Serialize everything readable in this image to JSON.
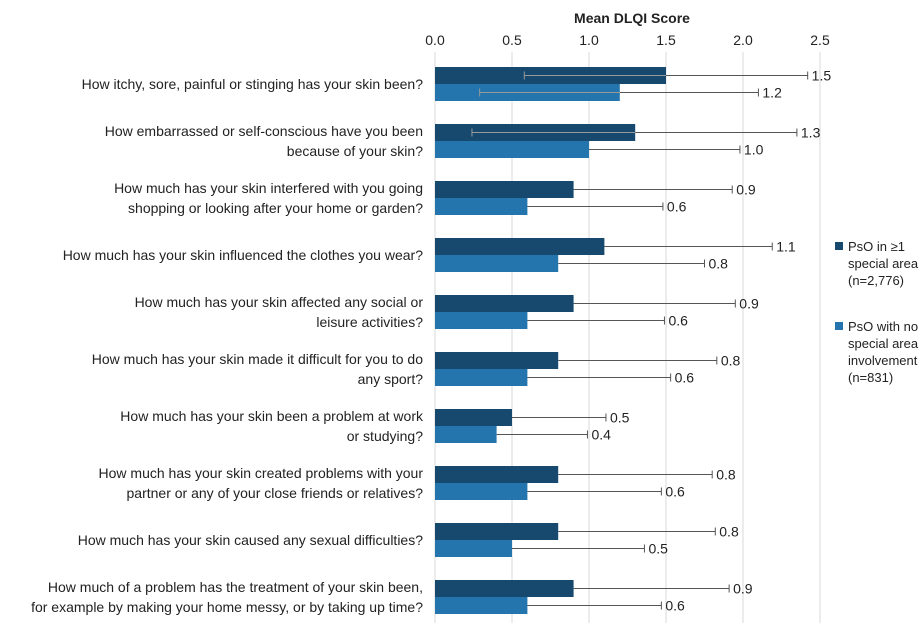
{
  "chart_data": {
    "type": "bar",
    "orientation": "horizontal",
    "title": "Mean DLQI Score",
    "xlim": [
      0,
      2.5
    ],
    "xticks": [
      "0.0",
      "0.5",
      "1.0",
      "1.5",
      "2.0",
      "2.5"
    ],
    "grid": true,
    "legend_position": "right",
    "categories": [
      [
        "How itchy, sore, painful or stinging has your skin been?"
      ],
      [
        "How embarrassed or self-conscious have you been",
        "because of your skin?"
      ],
      [
        "How much has your skin interfered with you going",
        "shopping or looking after your home or garden?"
      ],
      [
        "How much has your skin influenced the clothes you wear?"
      ],
      [
        "How much has your skin affected any social or",
        "leisure activities?"
      ],
      [
        "How much has your skin made it difficult for you to do",
        "any sport?"
      ],
      [
        "How much has your skin been a problem at work",
        "or studying?"
      ],
      [
        "How much has your skin created problems with your",
        "partner or any of your close friends or relatives?"
      ],
      [
        "How much has your skin caused any sexual difficulties?"
      ],
      [
        "How much of a problem has the treatment of your skin been,",
        "for example by making your home messy, or by taking up time?"
      ]
    ],
    "series": [
      {
        "name": [
          "PsO in ≥1",
          "special area",
          "(n=2,776)"
        ],
        "color": "#17496e",
        "values": [
          1.5,
          1.3,
          0.9,
          1.1,
          0.9,
          0.8,
          0.5,
          0.8,
          0.8,
          0.9
        ],
        "labels": [
          "1.5",
          "1.3",
          "0.9",
          "1.1",
          "0.9",
          "0.8",
          "0.5",
          "0.8",
          "0.8",
          "0.9"
        ],
        "error_low": [
          0.58,
          0.24,
          null,
          null,
          null,
          null,
          null,
          null,
          null,
          null
        ],
        "error_high": [
          2.42,
          2.35,
          1.93,
          2.19,
          1.95,
          1.83,
          1.11,
          1.8,
          1.82,
          1.91
        ]
      },
      {
        "name": [
          "PsO with no",
          "special area",
          "involvement",
          "(n=831)"
        ],
        "color": "#2474ad",
        "values": [
          1.2,
          1.0,
          0.6,
          0.8,
          0.6,
          0.6,
          0.4,
          0.6,
          0.5,
          0.6
        ],
        "labels": [
          "1.2",
          "1.0",
          "0.6",
          "0.8",
          "0.6",
          "0.6",
          "0.4",
          "0.6",
          "0.5",
          "0.6"
        ],
        "error_low": [
          0.29,
          null,
          null,
          null,
          null,
          null,
          null,
          null,
          null,
          null
        ],
        "error_high": [
          2.1,
          1.98,
          1.48,
          1.75,
          1.49,
          1.53,
          0.99,
          1.47,
          1.36,
          1.47
        ]
      }
    ]
  }
}
